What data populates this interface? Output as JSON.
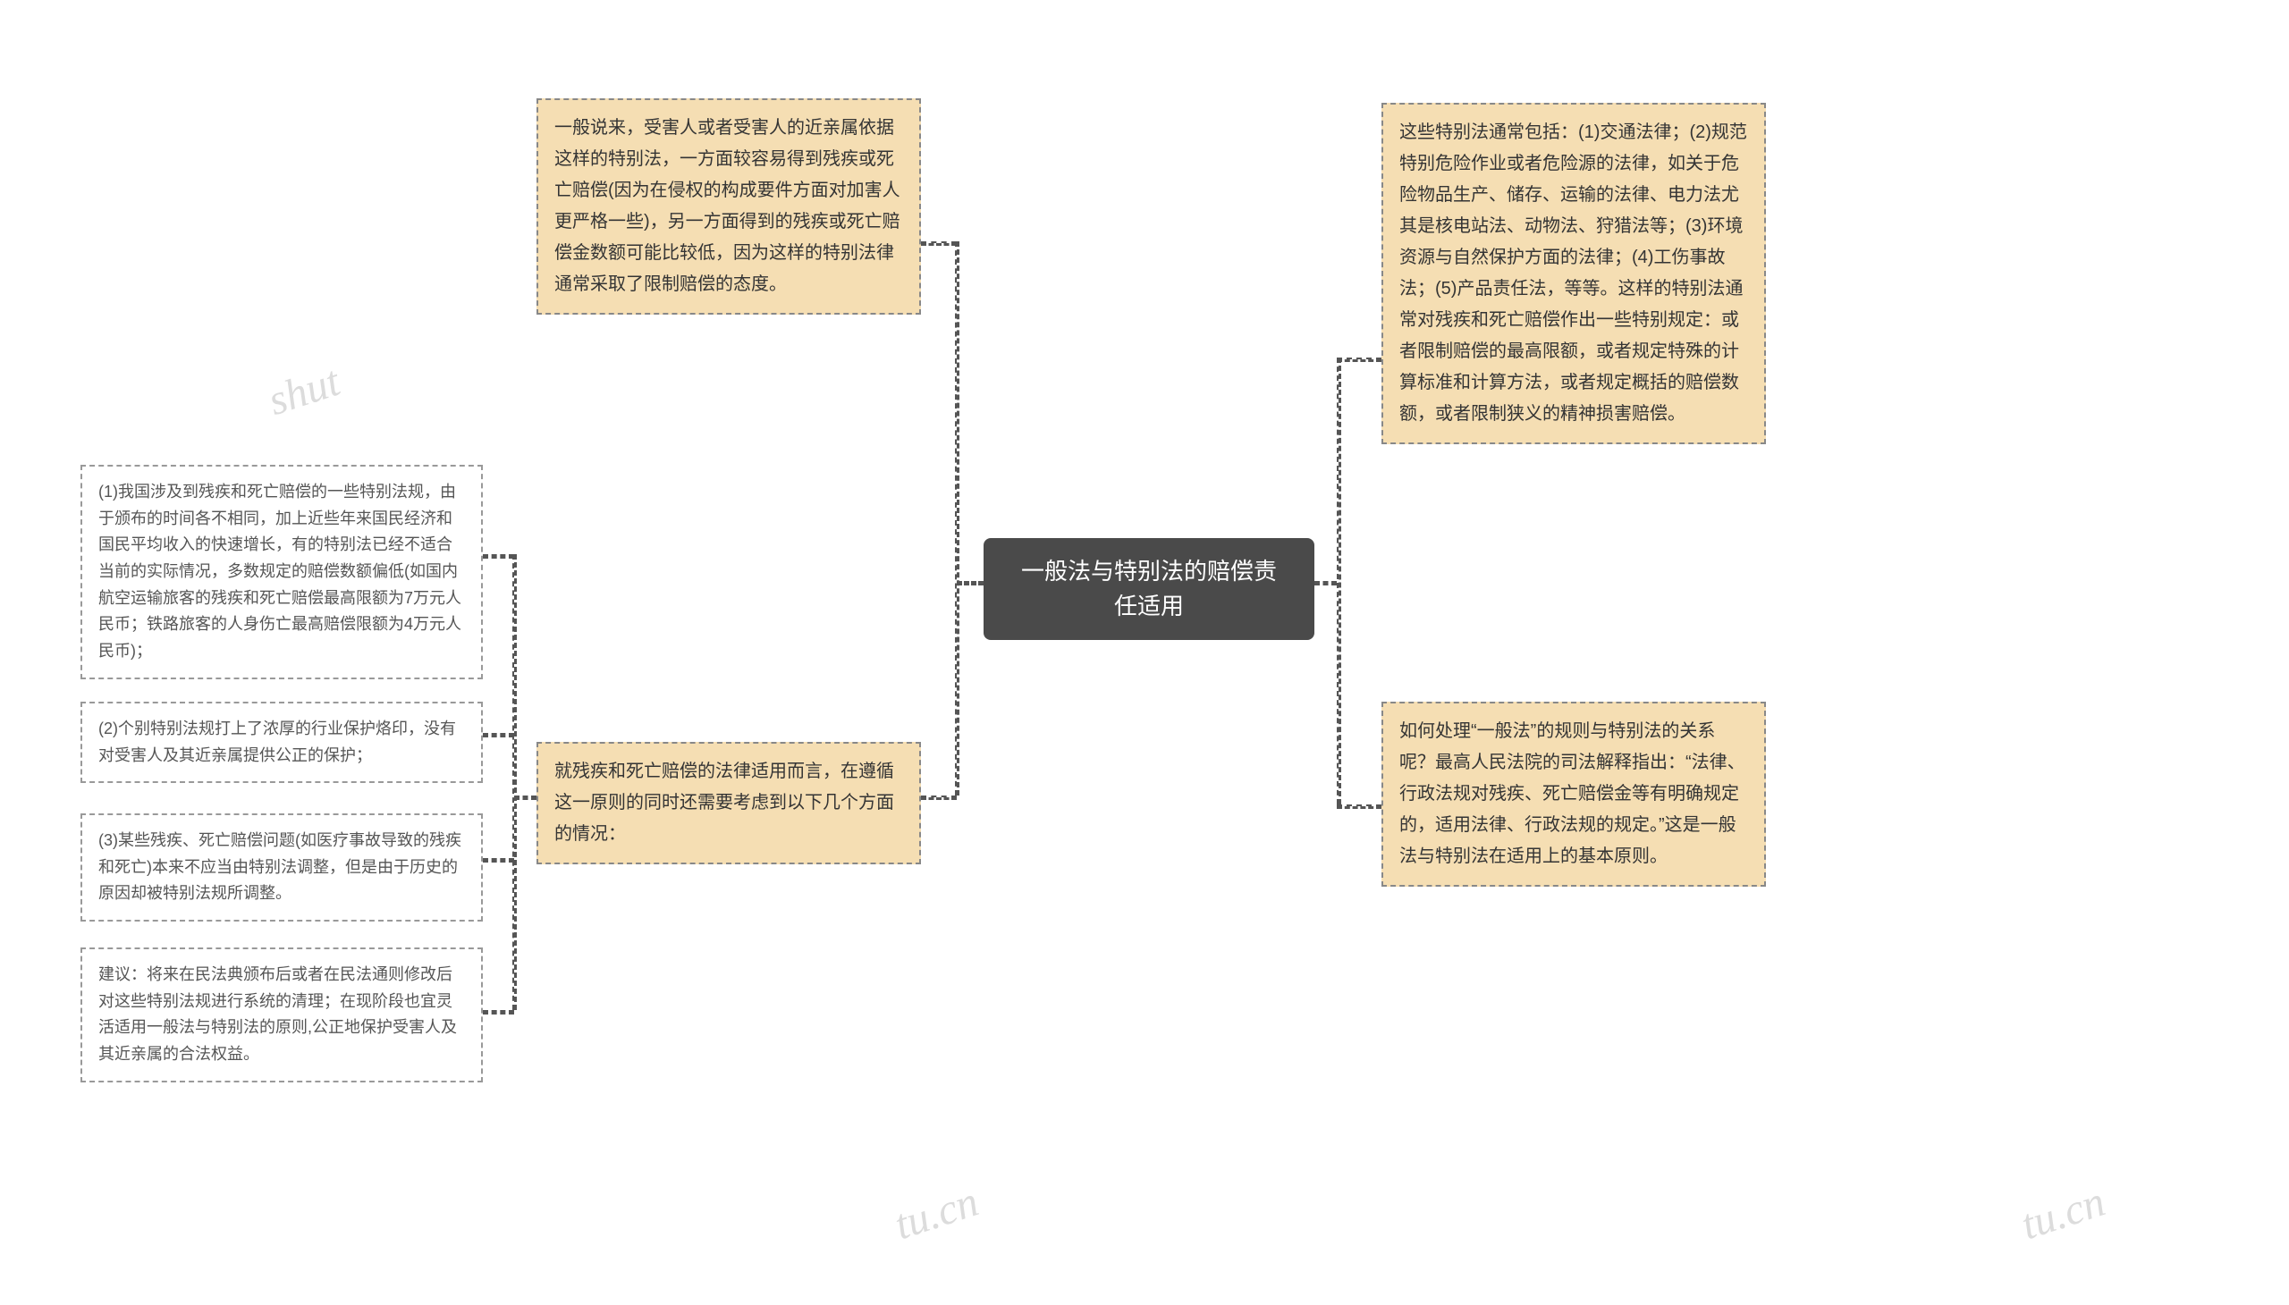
{
  "root": {
    "title": "一般法与特别法的赔偿责\n任适用"
  },
  "left": {
    "top": "一般说来，受害人或者受害人的近亲属依据这样的特别法，一方面较容易得到残疾或死亡赔偿(因为在侵权的构成要件方面对加害人更严格一些)，另一方面得到的残疾或死亡赔偿金数额可能比较低，因为这样的特别法律通常采取了限制赔偿的态度。",
    "bottom": "就残疾和死亡赔偿的法律适用而言，在遵循这一原则的同时还需要考虑到以下几个方面的情况：",
    "children": {
      "c1": "(1)我国涉及到残疾和死亡赔偿的一些特别法规，由于颁布的时间各不相同，加上近些年来国民经济和国民平均收入的快速增长，有的特别法已经不适合当前的实际情况，多数规定的赔偿数额偏低(如国内航空运输旅客的残疾和死亡赔偿最高限额为7万元人民币；铁路旅客的人身伤亡最高赔偿限额为4万元人民币)；",
      "c2": "(2)个别特别法规打上了浓厚的行业保护烙印，没有对受害人及其近亲属提供公正的保护；",
      "c3": "(3)某些残疾、死亡赔偿问题(如医疗事故导致的残疾和死亡)本来不应当由特别法调整，但是由于历史的原因却被特别法规所调整。",
      "c4": "建议：将来在民法典颁布后或者在民法通则修改后对这些特别法规进行系统的清理；在现阶段也宜灵活适用一般法与特别法的原则,公正地保护受害人及其近亲属的合法权益。"
    }
  },
  "right": {
    "top": "这些特别法通常包括：(1)交通法律；(2)规范特别危险作业或者危险源的法律，如关于危险物品生产、储存、运输的法律、电力法尤其是核电站法、动物法、狩猎法等；(3)环境资源与自然保护方面的法律；(4)工伤事故法；(5)产品责任法，等等。这样的特别法通常对残疾和死亡赔偿作出一些特别规定：或者限制赔偿的最高限额，或者规定特殊的计算标准和计算方法，或者规定概括的赔偿数额，或者限制狭义的精神损害赔偿。",
    "bottom": "如何处理“一般法”的规则与特别法的关系呢？最高人民法院的司法解释指出：“法律、行政法规对残疾、死亡赔偿金等有明确规定的，适用法律、行政法规的规定。”这是一般法与特别法在适用上的基本原则。"
  },
  "watermarks": [
    "shut",
    "tu.cn",
    "tu.cn"
  ],
  "style": {
    "root_bg": "#4a4a4a",
    "root_text": "#ffffff",
    "filled_bg": "#f5deb3",
    "filled_border": "#888888",
    "outline_border": "#999999",
    "connector_color": "#555555",
    "body_bg": "#ffffff"
  }
}
